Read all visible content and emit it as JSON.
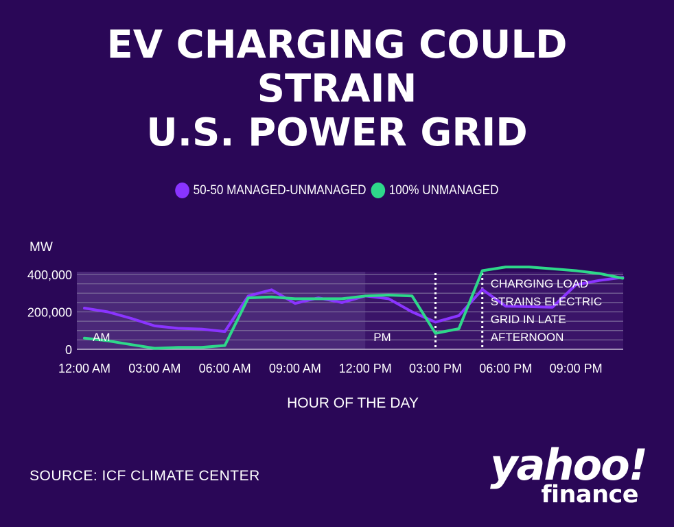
{
  "title_lines": [
    "EV CHARGING COULD",
    "STRAIN",
    "U.S. POWER GRID"
  ],
  "source": "SOURCE: ICF CLIMATE CENTER",
  "brand": {
    "main": "yahoo!",
    "sub": "finance"
  },
  "colors": {
    "background": "#2a0757",
    "series_managed": "#8a34ff",
    "series_unmanaged": "#2ed88a"
  },
  "chart_data": {
    "type": "line",
    "title": "EV CHARGING COULD STRAIN U.S. POWER GRID",
    "xlabel": "HOUR OF THE DAY",
    "ylabel": "MW",
    "x": [
      0,
      1,
      2,
      3,
      4,
      5,
      6,
      7,
      8,
      9,
      10,
      11,
      12,
      13,
      14,
      15,
      16,
      17,
      18,
      19,
      20,
      21,
      22,
      23
    ],
    "x_tick_hours": [
      0,
      3,
      6,
      9,
      12,
      15,
      18,
      21
    ],
    "x_tick_labels": [
      "12:00 AM",
      "03:00 AM",
      "06:00 AM",
      "09:00 AM",
      "12:00 PM",
      "03:00 PM",
      "06:00 PM",
      "09:00 PM"
    ],
    "y_ticks": [
      0,
      200000,
      400000
    ],
    "y_tick_labels": [
      "0",
      "200,000",
      "400,000"
    ],
    "ylim": [
      0,
      400000
    ],
    "grid": true,
    "legend_position": "top-center",
    "series": [
      {
        "name": "50-50 MANAGED-UNMANAGED",
        "color": "#8a34ff",
        "values": [
          220000,
          200000,
          165000,
          125000,
          112000,
          108000,
          95000,
          285000,
          318000,
          245000,
          275000,
          250000,
          285000,
          270000,
          200000,
          145000,
          180000,
          320000,
          230000,
          228000,
          225000,
          345000,
          368000,
          385000
        ]
      },
      {
        "name": "100% UNMANAGED",
        "color": "#2ed88a",
        "values": [
          60000,
          45000,
          25000,
          5000,
          10000,
          10000,
          20000,
          275000,
          280000,
          270000,
          270000,
          270000,
          285000,
          290000,
          285000,
          85000,
          110000,
          420000,
          440000,
          440000,
          430000,
          420000,
          405000,
          380000
        ]
      }
    ],
    "annotations": [
      {
        "text": "AM",
        "hour": 0
      },
      {
        "text": "PM",
        "hour": 12
      },
      {
        "text": "CHARGING LOAD STRAINS ELECTRIC GRID IN LATE AFTERNOON",
        "lines": [
          "CHARGING LOAD",
          "STRAINS ELECTRIC",
          "GRID IN LATE",
          "AFTERNOON"
        ],
        "hour": 17
      }
    ],
    "markers": [
      15,
      17
    ]
  }
}
